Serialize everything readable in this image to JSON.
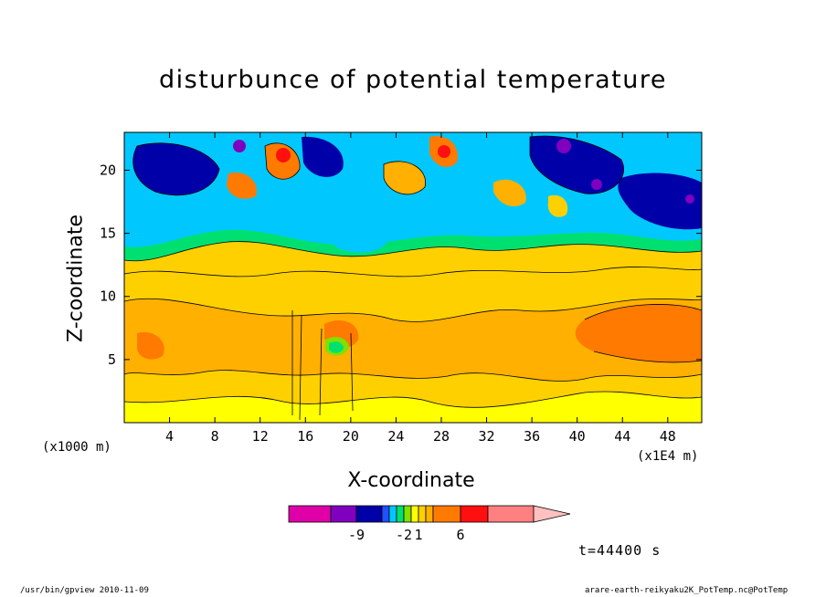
{
  "chart_data": {
    "type": "heatmap",
    "title": "disturbunce of potential temperature",
    "xlabel": "X-coordinate",
    "ylabel": "Z-coordinate",
    "x_unit_left": "(x1000 m)",
    "x_unit_right": "(x1E4 m)",
    "x_ticks": [
      4,
      8,
      12,
      16,
      20,
      24,
      28,
      32,
      36,
      40,
      44,
      48
    ],
    "y_ticks": [
      5,
      10,
      15,
      20
    ],
    "xlim": [
      0,
      51
    ],
    "ylim": [
      0,
      23
    ],
    "time_label": "t=44400 s",
    "colorbar": {
      "colors": [
        "#e000a8",
        "#8000c0",
        "#0000a8",
        "#2050ff",
        "#00c8ff",
        "#00e070",
        "#80e000",
        "#ffff00",
        "#ffd000",
        "#ffb000",
        "#ff7a00",
        "#ff1010",
        "#ff8080",
        "#ffc0c0"
      ],
      "tick_labels": [
        "-9",
        "-2",
        "1",
        "6"
      ],
      "tick_positions": [
        -9,
        -2,
        1,
        6
      ]
    },
    "field_summary": {
      "near_surface_0_3km": "yellow (~1)",
      "mid_levels_3_12km": "orange (~3-6), strongest at x 44-50",
      "upper_levels_15_23km": "blue/purple (negative) with orange/red cells"
    }
  },
  "footer": {
    "left": "/usr/bin/gpview  2010-11-09",
    "right": "arare-earth-reikyaku2K_PotTemp.nc@PotTemp"
  }
}
